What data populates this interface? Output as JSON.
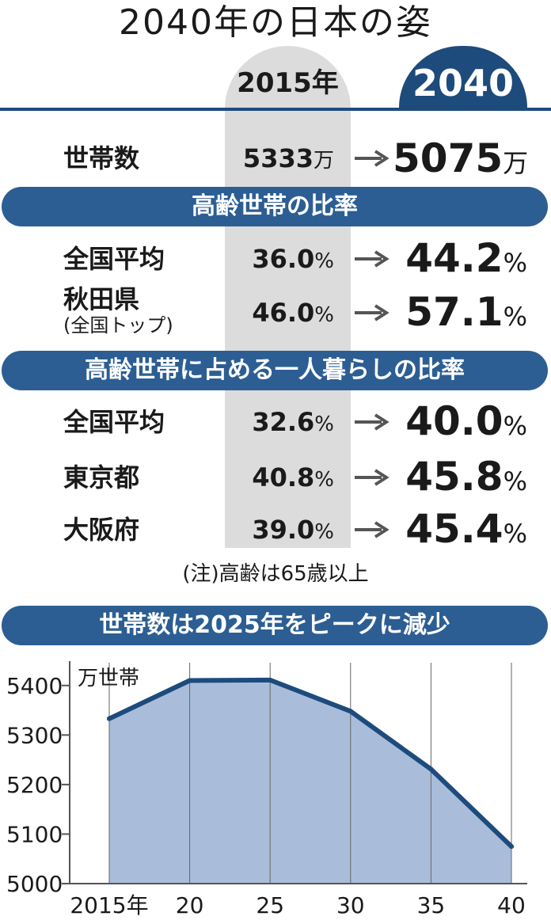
{
  "title": "2040年の日本の姿",
  "columns": {
    "col_2015": "2015年",
    "col_2040": "2040"
  },
  "households": {
    "label": "世帯数",
    "v2015": "5333",
    "u2015": "万",
    "v2040": "5075",
    "u2040": "万"
  },
  "section1": {
    "header": "高齢世帯の比率",
    "rows": [
      {
        "label": "全国平均",
        "sublabel": "",
        "v2015": "36.0",
        "v2040": "44.2",
        "unit": "%"
      },
      {
        "label": "秋田県",
        "sublabel": "(全国トップ)",
        "v2015": "46.0",
        "v2040": "57.1",
        "unit": "%"
      }
    ]
  },
  "section2": {
    "header": "高齢世帯に占める一人暮らしの比率",
    "rows": [
      {
        "label": "全国平均",
        "v2015": "32.6",
        "v2040": "40.0",
        "unit": "%"
      },
      {
        "label": "東京都",
        "v2015": "40.8",
        "v2040": "45.8",
        "unit": "%"
      },
      {
        "label": "大阪府",
        "v2015": "39.0",
        "v2040": "45.4",
        "unit": "%"
      }
    ]
  },
  "note": "(注)高齢は65歳以上",
  "chart_header": "世帯数は2025年をピークに減少",
  "colors": {
    "navy": "#1d4b7c",
    "pill": "#2c5e93",
    "area": "#a9bddb",
    "column_gray": "#dcdcdc"
  },
  "chart_data": {
    "type": "area",
    "title": "世帯数は2025年をピークに減少",
    "unit_label": "万世帯",
    "x": [
      2015,
      2020,
      2025,
      2030,
      2035,
      2040
    ],
    "x_tick_labels": [
      "2015年",
      "20",
      "25",
      "30",
      "35",
      "40"
    ],
    "values": [
      5333,
      5410,
      5411,
      5348,
      5231,
      5075
    ],
    "y_ticks": [
      "5000",
      "5100",
      "5200",
      "5300",
      "5400"
    ],
    "ylim": [
      5000,
      5430
    ],
    "grid": false
  }
}
